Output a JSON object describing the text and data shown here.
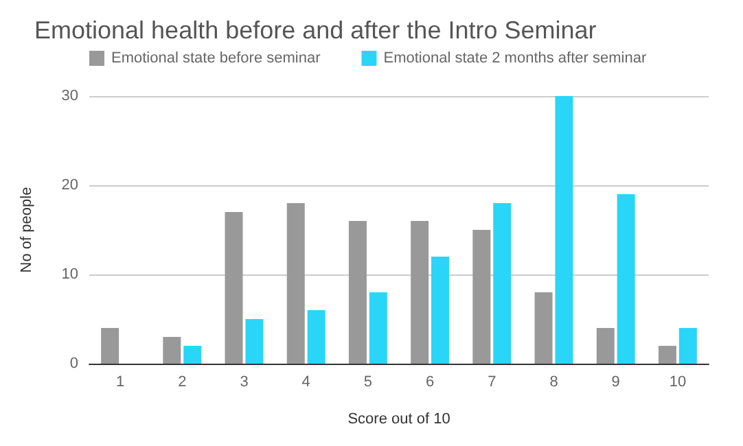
{
  "chart_data": {
    "type": "bar",
    "title": "Emotional health before and after the Intro Seminar",
    "xlabel": "Score out of 10",
    "ylabel": "No of people",
    "categories": [
      "1",
      "2",
      "3",
      "4",
      "5",
      "6",
      "7",
      "8",
      "9",
      "10"
    ],
    "series": [
      {
        "name": "Emotional state before seminar",
        "color": "#999999",
        "values": [
          4,
          3,
          17,
          18,
          16,
          16,
          15,
          8,
          4,
          2
        ]
      },
      {
        "name": "Emotional state 2 months after seminar",
        "color": "#29d6f8",
        "values": [
          0,
          2,
          5,
          6,
          8,
          12,
          18,
          30,
          19,
          4
        ]
      }
    ],
    "ylim": [
      0,
      30
    ],
    "yticks": [
      0,
      10,
      20,
      30
    ],
    "grid": "y",
    "legend": "top left"
  }
}
